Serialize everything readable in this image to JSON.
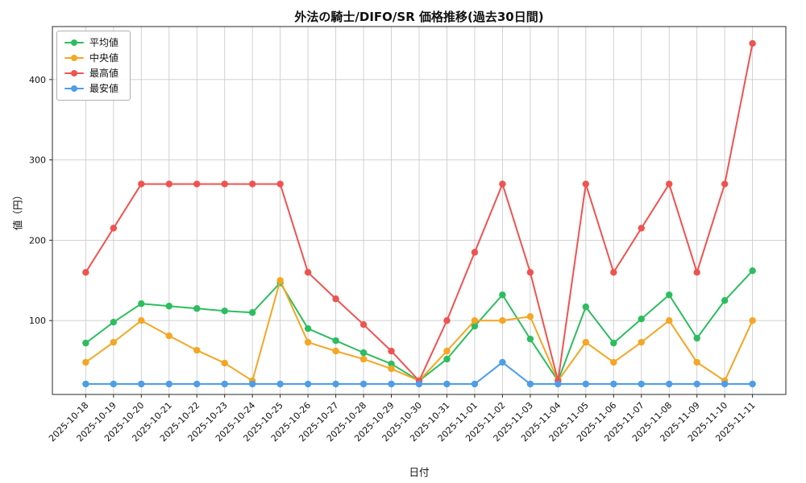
{
  "chart_data": {
    "type": "line",
    "title": "外法の騎士/DIFO/SR 価格推移(過去30日間)",
    "xlabel": "日付",
    "ylabel": "値（円）",
    "x": [
      "2025-10-18",
      "2025-10-19",
      "2025-10-20",
      "2025-10-21",
      "2025-10-22",
      "2025-10-23",
      "2025-10-24",
      "2025-10-25",
      "2025-10-26",
      "2025-10-27",
      "2025-10-28",
      "2025-10-29",
      "2025-10-30",
      "2025-10-31",
      "2025-11-01",
      "2025-11-02",
      "2025-11-03",
      "2025-11-04",
      "2025-11-05",
      "2025-11-06",
      "2025-11-07",
      "2025-11-08",
      "2025-11-09",
      "2025-11-10",
      "2025-11-11"
    ],
    "series": [
      {
        "key": "average",
        "name": "平均値",
        "color": "#2dbd5f",
        "values": [
          72,
          98,
          121,
          118,
          115,
          112,
          110,
          147,
          90,
          75,
          60,
          46,
          25,
          52,
          93,
          132,
          77,
          25,
          117,
          72,
          102,
          132,
          78,
          125,
          162
        ]
      },
      {
        "key": "median",
        "name": "中央値",
        "color": "#f5a623",
        "values": [
          48,
          73,
          100,
          81,
          63,
          47,
          25,
          150,
          73,
          62,
          52,
          40,
          25,
          62,
          100,
          100,
          105,
          25,
          73,
          48,
          73,
          100,
          48,
          25,
          100
        ]
      },
      {
        "key": "max",
        "name": "最高値",
        "color": "#ef5350",
        "values": [
          160,
          215,
          270,
          270,
          270,
          270,
          270,
          270,
          160,
          127,
          95,
          62,
          25,
          100,
          185,
          270,
          160,
          25,
          270,
          160,
          215,
          270,
          160,
          270,
          445
        ]
      },
      {
        "key": "min",
        "name": "最安値",
        "color": "#4d9de9",
        "values": [
          21,
          21,
          21,
          21,
          21,
          21,
          21,
          21,
          21,
          21,
          21,
          21,
          21,
          21,
          21,
          48,
          21,
          21,
          21,
          21,
          21,
          21,
          21,
          21,
          21
        ]
      }
    ],
    "ylim": [
      8,
      466
    ],
    "yticks": [
      100,
      200,
      300,
      400
    ],
    "grid": true,
    "legend_position": "upper left",
    "x_tick_rotation": 45
  }
}
